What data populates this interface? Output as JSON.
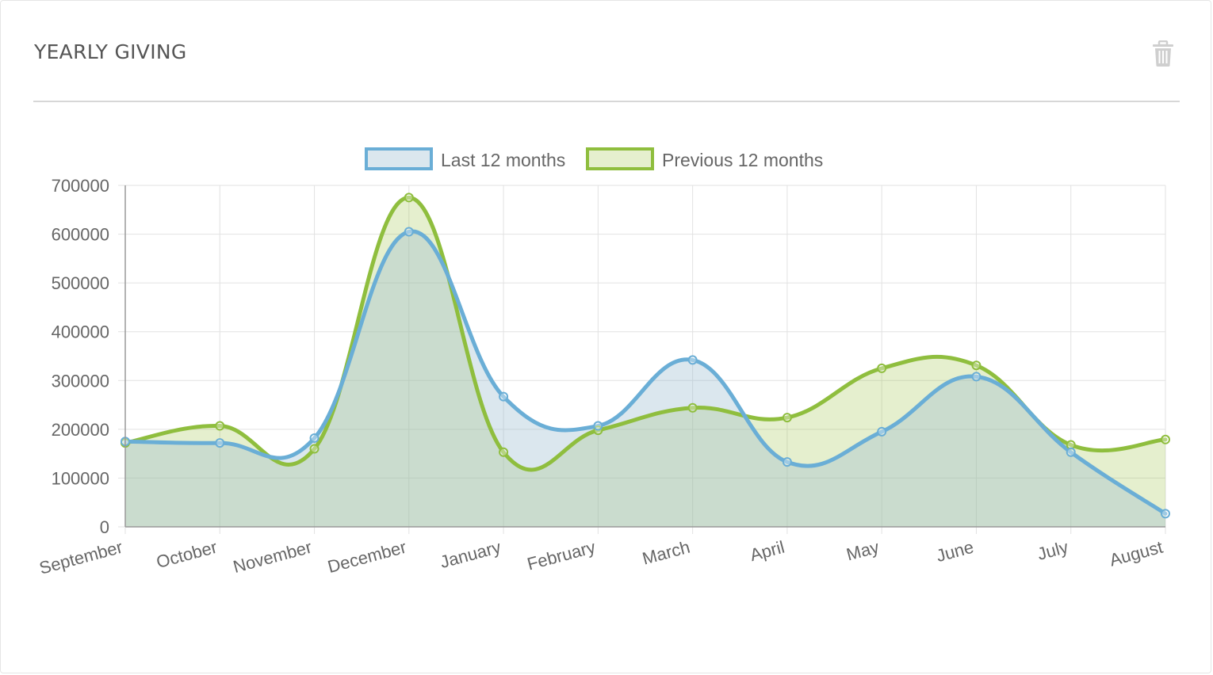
{
  "widget": {
    "title": "YEARLY GIVING",
    "delete_icon": "trash-icon",
    "colors": {
      "last": "#6aaed6",
      "last_fill": "rgba(151,187,205,0.35)",
      "previous": "#8fbe3e",
      "previous_fill": "rgba(150,190,60,0.25)",
      "grid": "#e2e2e2",
      "axis": "#999999"
    }
  },
  "chart_data": {
    "type": "line",
    "title": "",
    "xlabel": "",
    "ylabel": "",
    "categories": [
      "September",
      "October",
      "November",
      "December",
      "January",
      "February",
      "March",
      "April",
      "May",
      "June",
      "July",
      "August"
    ],
    "series": [
      {
        "name": "Last 12 months",
        "values": [
          175000,
          172000,
          182000,
          605000,
          267000,
          207000,
          342000,
          133000,
          195000,
          308000,
          153000,
          27000
        ]
      },
      {
        "name": "Previous 12 months",
        "values": [
          172000,
          207000,
          160000,
          675000,
          153000,
          198000,
          244000,
          224000,
          325000,
          331000,
          168000,
          179000
        ]
      }
    ],
    "yticks": [
      "0",
      "100000",
      "200000",
      "300000",
      "400000",
      "500000",
      "600000",
      "700000"
    ],
    "ylim": [
      0,
      700000
    ],
    "grid": true,
    "legend_position": "top-center",
    "curve": "smooth",
    "filled": true
  }
}
